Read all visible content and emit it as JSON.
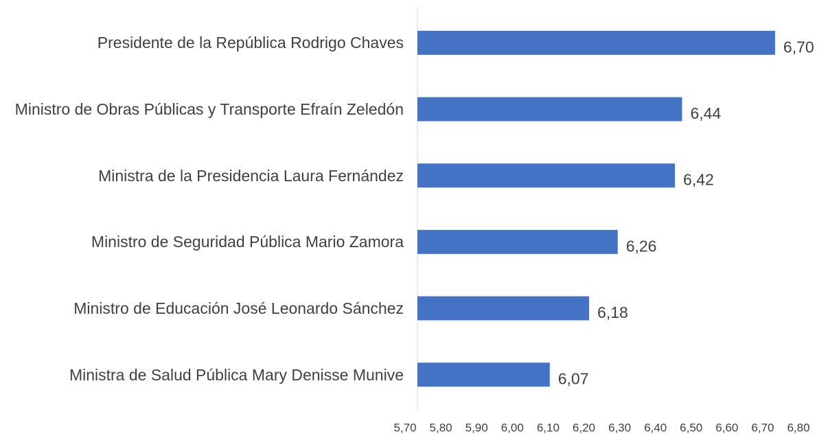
{
  "chart_data": {
    "type": "bar",
    "orientation": "horizontal",
    "categories": [
      "Presidente de la República Rodrigo Chaves",
      "Ministro de Obras Públicas y Transporte Efraín Zeledón",
      "Ministra de la Presidencia Laura Fernández",
      "Ministro de Seguridad Pública Mario Zamora",
      "Ministro de Educación José Leonardo Sánchez",
      "Ministra de Salud Pública Mary Denisse Munive"
    ],
    "values": [
      6.7,
      6.44,
      6.42,
      6.26,
      6.18,
      6.07
    ],
    "value_labels": [
      "6,70",
      "6,44",
      "6,42",
      "6,26",
      "6,18",
      "6,07"
    ],
    "color": "#4472c4",
    "xlim": [
      5.7,
      6.8
    ],
    "xticks": [
      {
        "value": 5.7,
        "label": "5,70"
      },
      {
        "value": 5.8,
        "label": "5,80"
      },
      {
        "value": 5.9,
        "label": "5,90"
      },
      {
        "value": 6.0,
        "label": "6,00"
      },
      {
        "value": 6.1,
        "label": "6,10"
      },
      {
        "value": 6.2,
        "label": "6,20"
      },
      {
        "value": 6.3,
        "label": "6,30"
      },
      {
        "value": 6.4,
        "label": "6,40"
      },
      {
        "value": 6.5,
        "label": "6,50"
      },
      {
        "value": 6.6,
        "label": "6,60"
      },
      {
        "value": 6.7,
        "label": "6,70"
      },
      {
        "value": 6.8,
        "label": "6,80"
      }
    ],
    "grid": false
  }
}
